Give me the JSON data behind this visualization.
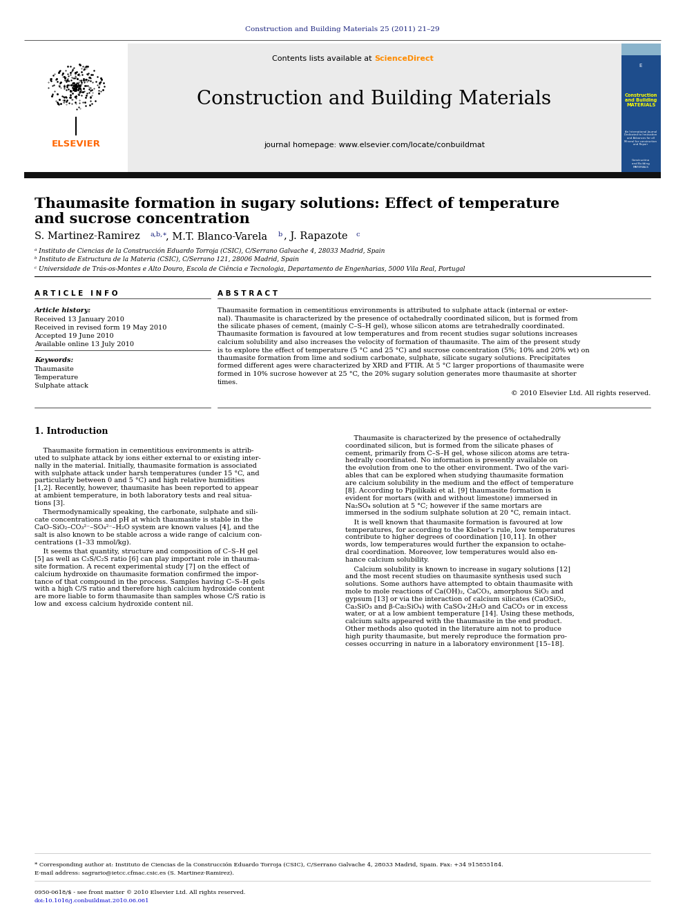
{
  "journal_ref": "Construction and Building Materials 25 (2011) 21–29",
  "journal_ref_color": "#1a237e",
  "sciencedirect_color": "#ff8c00",
  "journal_title": "Construction and Building Materials",
  "journal_url": "journal homepage: www.elsevier.com/locate/conbuildmat",
  "paper_title_line1": "Thaumasite formation in sugary solutions: Effect of temperature",
  "paper_title_line2": "and sucrose concentration",
  "affil_a": "ᵃ Instituto de Ciencias de la Construcción Eduardo Torroja (CSIC), C/Serrano Galvache 4, 28033 Madrid, Spain",
  "affil_b": "ᵇ Instituto de Estructura de la Materia (CSIC), C/Serrano 121, 28006 Madrid, Spain",
  "affil_c": "ᶜ Universidade de Trás-os-Montes e Alto Douro, Escola de Ciência e Tecnologia, Departamento de Engenharias, 5000 Vila Real, Portugal",
  "article_info_header": "A R T I C L E   I N F O",
  "abstract_header": "A B S T R A C T",
  "article_history_header": "Article history:",
  "received": "Received 13 January 2010",
  "revised": "Received in revised form 19 May 2010",
  "accepted": "Accepted 19 June 2010",
  "available": "Available online 13 July 2010",
  "keywords_header": "Keywords:",
  "keyword1": "Thaumasite",
  "keyword2": "Temperature",
  "keyword3": "Sulphate attack",
  "copyright": "© 2010 Elsevier Ltd. All rights reserved.",
  "intro_header": "1. Introduction",
  "footnote_star": "* Corresponding author at: Instituto de Ciencias de la Construcción Eduardo Torroja (CSIC), C/Serrano Galvache 4, 28033 Madrid, Spain. Fax: +34 915855184.",
  "footnote_email": "E-mail address: sagrario@ietcc.cfmac.csic.es (S. Martinez-Ramirez).",
  "issn": "0950-0618/$ - see front matter © 2010 Elsevier Ltd. All rights reserved.",
  "doi": "doi:10.1016/j.conbuildmat.2010.06.061",
  "bg_color": "#ffffff",
  "link_color": "#0000cc",
  "elsevier_orange": "#ff6600",
  "dark_navy": "#1a237e"
}
